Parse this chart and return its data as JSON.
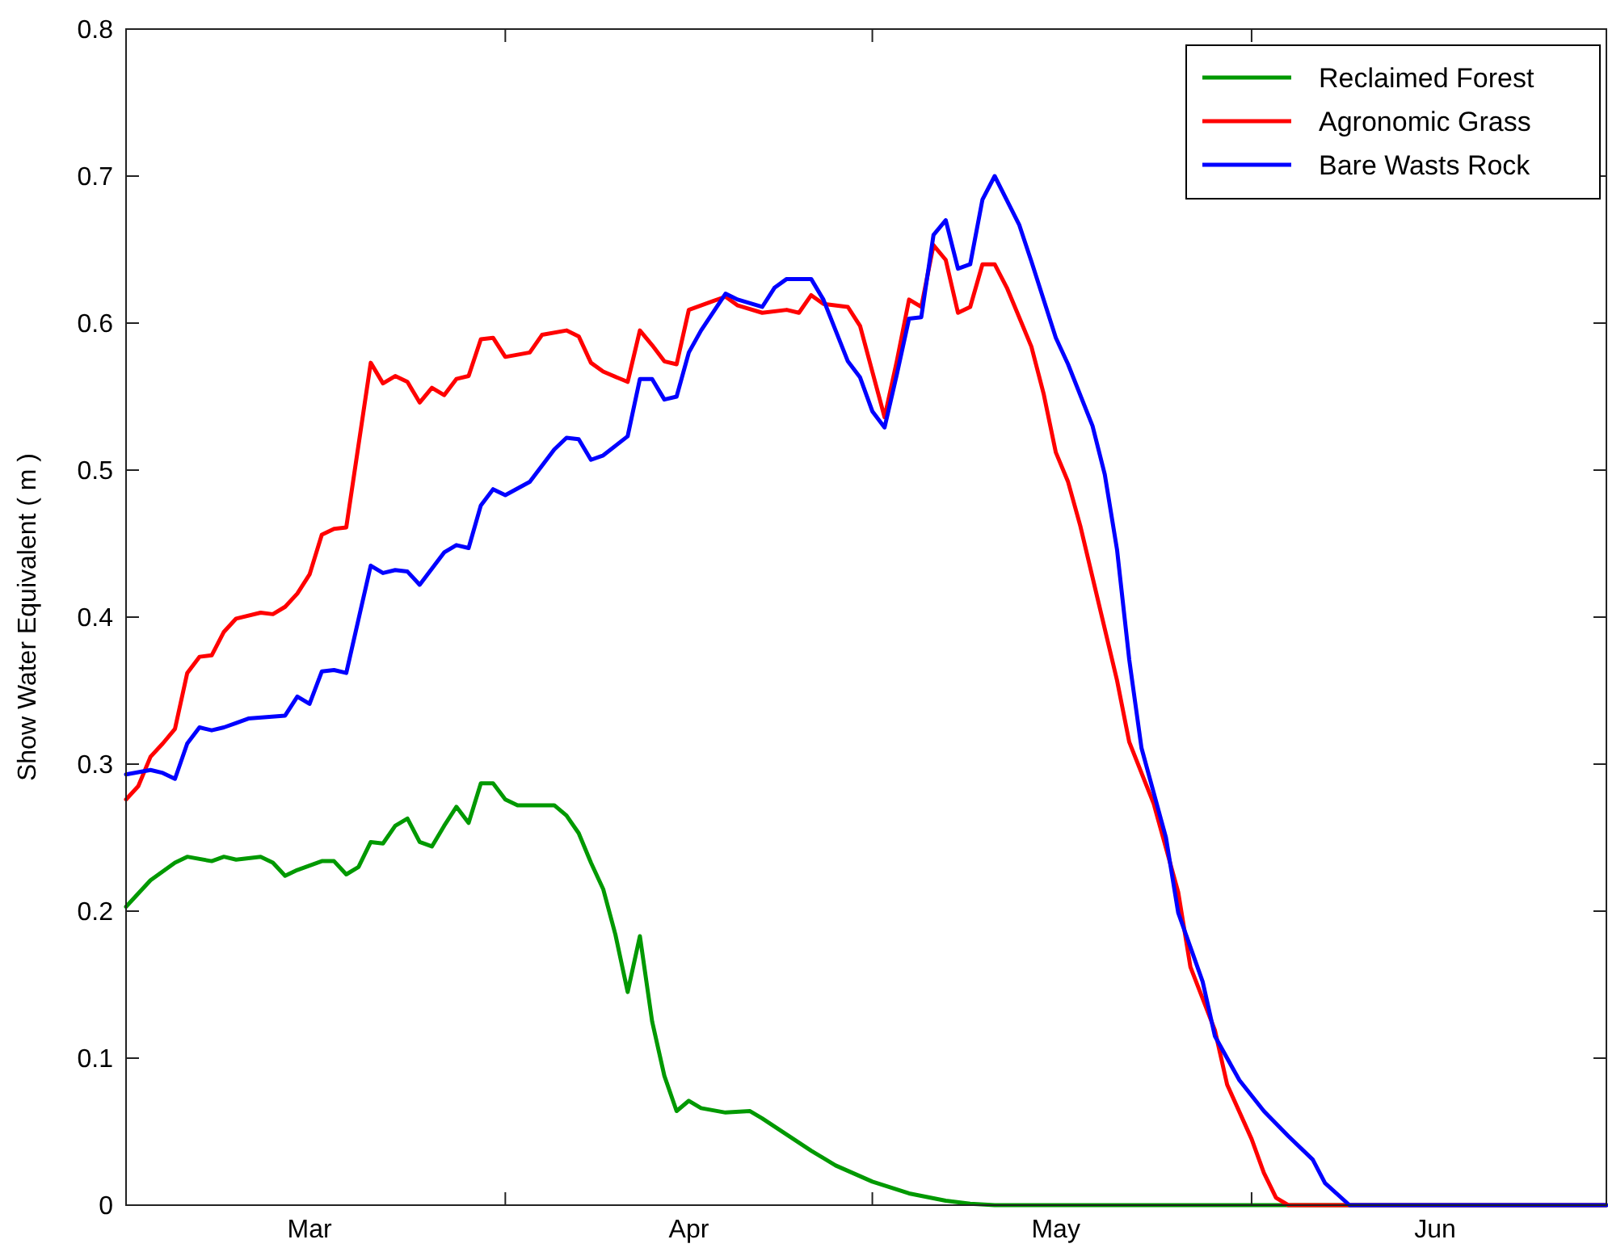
{
  "chart_data": {
    "type": "line",
    "ylabel": "Show Water Equivalent ( m )",
    "xlim": [
      "--03-01",
      "--06-30"
    ],
    "xticks": [
      {
        "value": "--03-16",
        "label": "Mar"
      },
      {
        "value": "--04-01",
        "label": null
      },
      {
        "value": "--04-16",
        "label": "Apr"
      },
      {
        "value": "--05-01",
        "label": null
      },
      {
        "value": "--05-16",
        "label": "May"
      },
      {
        "value": "--06-01",
        "label": null
      },
      {
        "value": "--06-16",
        "label": "Jun"
      }
    ],
    "ylim": [
      0,
      0.8
    ],
    "yticks": [
      0,
      0.1,
      0.2,
      0.3,
      0.4,
      0.5,
      0.6,
      0.7,
      0.8
    ],
    "grid": false,
    "legend": "top right",
    "marker": "none",
    "line_style": "solid",
    "series": [
      {
        "name": "Reclaimed Forest",
        "color": "#009900",
        "x": [
          "--03-01",
          "--03-03",
          "--03-05",
          "--03-06",
          "--03-08",
          "--03-09",
          "--03-10",
          "--03-12",
          "--03-13",
          "--03-14",
          "--03-15",
          "--03-17",
          "--03-18",
          "--03-19",
          "--03-20",
          "--03-21",
          "--03-22",
          "--03-23",
          "--03-24",
          "--03-25",
          "--03-26",
          "--03-27",
          "--03-28",
          "--03-29",
          "--03-30",
          "--03-31",
          "--04-01",
          "--04-02",
          "--04-05",
          "--04-06",
          "--04-07",
          "--04-08",
          "--04-09",
          "--04-10",
          "--04-11",
          "--04-12",
          "--04-13",
          "--04-14",
          "--04-15",
          "--04-16",
          "--04-17",
          "--04-19",
          "--04-21",
          "--04-22",
          "--04-24",
          "--04-26",
          "--04-28",
          "--05-01",
          "--05-04",
          "--05-07",
          "--05-09",
          "--05-11",
          "--06-30"
        ],
        "values": [
          0.203,
          0.221,
          0.233,
          0.237,
          0.234,
          0.237,
          0.235,
          0.237,
          0.233,
          0.224,
          0.228,
          0.234,
          0.234,
          0.225,
          0.23,
          0.247,
          0.246,
          0.258,
          0.263,
          0.247,
          0.244,
          0.258,
          0.271,
          0.26,
          0.287,
          0.287,
          0.276,
          0.272,
          0.272,
          0.265,
          0.253,
          0.233,
          0.215,
          0.184,
          0.145,
          0.183,
          0.125,
          0.088,
          0.064,
          0.071,
          0.066,
          0.063,
          0.064,
          0.059,
          0.048,
          0.037,
          0.027,
          0.016,
          0.008,
          0.003,
          0.001,
          0,
          0
        ]
      },
      {
        "name": "Agronomic Grass",
        "color": "#ff0000",
        "x": [
          "--03-01",
          "--03-02",
          "--03-03",
          "--03-04",
          "--03-05",
          "--03-06",
          "--03-07",
          "--03-08",
          "--03-09",
          "--03-10",
          "--03-12",
          "--03-13",
          "--03-14",
          "--03-15",
          "--03-16",
          "--03-17",
          "--03-18",
          "--03-19",
          "--03-21",
          "--03-22",
          "--03-23",
          "--03-24",
          "--03-25",
          "--03-26",
          "--03-27",
          "--03-28",
          "--03-29",
          "--03-30",
          "--03-31",
          "--04-01",
          "--04-03",
          "--04-04",
          "--04-06",
          "--04-07",
          "--04-08",
          "--04-09",
          "--04-11",
          "--04-12",
          "--04-13",
          "--04-14",
          "--04-15",
          "--04-16",
          "--04-18",
          "--04-19",
          "--04-20",
          "--04-22",
          "--04-24",
          "--04-25",
          "--04-26",
          "--04-27",
          "--04-29",
          "--04-30",
          "--05-01",
          "--05-02",
          "--05-03",
          "--05-04",
          "--05-05",
          "--05-06",
          "--05-07",
          "--05-08",
          "--05-09",
          "--05-10",
          "--05-11",
          "--05-12",
          "--05-14",
          "--05-15",
          "--05-16",
          "--05-17",
          "--05-18",
          "--05-19",
          "--05-21",
          "--05-22",
          "--05-24",
          "--05-26",
          "--05-27",
          "--05-29",
          "--05-30",
          "--06-01",
          "--06-02",
          "--06-03",
          "--06-04",
          "--06-30"
        ],
        "values": [
          0.276,
          0.285,
          0.305,
          0.314,
          0.324,
          0.362,
          0.373,
          0.374,
          0.39,
          0.399,
          0.403,
          0.402,
          0.407,
          0.416,
          0.429,
          0.456,
          0.46,
          0.461,
          0.573,
          0.559,
          0.564,
          0.56,
          0.546,
          0.556,
          0.551,
          0.562,
          0.564,
          0.589,
          0.59,
          0.577,
          0.58,
          0.592,
          0.595,
          0.591,
          0.573,
          0.567,
          0.56,
          0.595,
          0.585,
          0.574,
          0.572,
          0.609,
          0.615,
          0.618,
          0.612,
          0.607,
          0.609,
          0.607,
          0.619,
          0.613,
          0.611,
          0.598,
          0.567,
          0.536,
          0.574,
          0.616,
          0.611,
          0.653,
          0.643,
          0.607,
          0.611,
          0.64,
          0.64,
          0.624,
          0.584,
          0.552,
          0.512,
          0.492,
          0.462,
          0.427,
          0.357,
          0.315,
          0.273,
          0.213,
          0.162,
          0.119,
          0.082,
          0.045,
          0.022,
          0.005,
          0,
          0
        ]
      },
      {
        "name": "Bare Wasts Rock",
        "color": "#0000ff",
        "x": [
          "--03-01",
          "--03-03",
          "--03-04",
          "--03-05",
          "--03-06",
          "--03-07",
          "--03-08",
          "--03-09",
          "--03-10",
          "--03-11",
          "--03-14",
          "--03-15",
          "--03-16",
          "--03-17",
          "--03-18",
          "--03-19",
          "--03-21",
          "--03-22",
          "--03-23",
          "--03-24",
          "--03-25",
          "--03-27",
          "--03-28",
          "--03-29",
          "--03-30",
          "--03-31",
          "--04-01",
          "--04-03",
          "--04-04",
          "--04-05",
          "--04-06",
          "--04-07",
          "--04-08",
          "--04-09",
          "--04-11",
          "--04-12",
          "--04-13",
          "--04-14",
          "--04-15",
          "--04-16",
          "--04-17",
          "--04-19",
          "--04-20",
          "--04-22",
          "--04-23",
          "--04-24",
          "--04-26",
          "--04-27",
          "--04-28",
          "--04-29",
          "--04-30",
          "--05-01",
          "--05-02",
          "--05-03",
          "--05-04",
          "--05-05",
          "--05-06",
          "--05-07",
          "--05-08",
          "--05-09",
          "--05-10",
          "--05-11",
          "--05-13",
          "--05-14",
          "--05-16",
          "--05-17",
          "--05-19",
          "--05-20",
          "--05-21",
          "--05-22",
          "--05-23",
          "--05-25",
          "--05-26",
          "--05-28",
          "--05-29",
          "--05-31",
          "--06-02",
          "--06-04",
          "--06-06",
          "--06-07",
          "--06-09",
          "--06-30"
        ],
        "values": [
          0.293,
          0.296,
          0.294,
          0.29,
          0.314,
          0.325,
          0.323,
          0.325,
          0.328,
          0.331,
          0.333,
          0.346,
          0.341,
          0.363,
          0.364,
          0.362,
          0.435,
          0.43,
          0.432,
          0.431,
          0.422,
          0.444,
          0.449,
          0.447,
          0.476,
          0.487,
          0.483,
          0.492,
          0.503,
          0.514,
          0.522,
          0.521,
          0.507,
          0.51,
          0.523,
          0.562,
          0.562,
          0.548,
          0.55,
          0.58,
          0.595,
          0.62,
          0.616,
          0.611,
          0.624,
          0.63,
          0.63,
          0.616,
          0.595,
          0.574,
          0.563,
          0.54,
          0.529,
          0.565,
          0.603,
          0.604,
          0.66,
          0.67,
          0.637,
          0.64,
          0.684,
          0.7,
          0.667,
          0.642,
          0.59,
          0.572,
          0.53,
          0.497,
          0.446,
          0.371,
          0.311,
          0.25,
          0.199,
          0.152,
          0.115,
          0.085,
          0.064,
          0.047,
          0.031,
          0.015,
          0,
          0
        ]
      }
    ]
  }
}
